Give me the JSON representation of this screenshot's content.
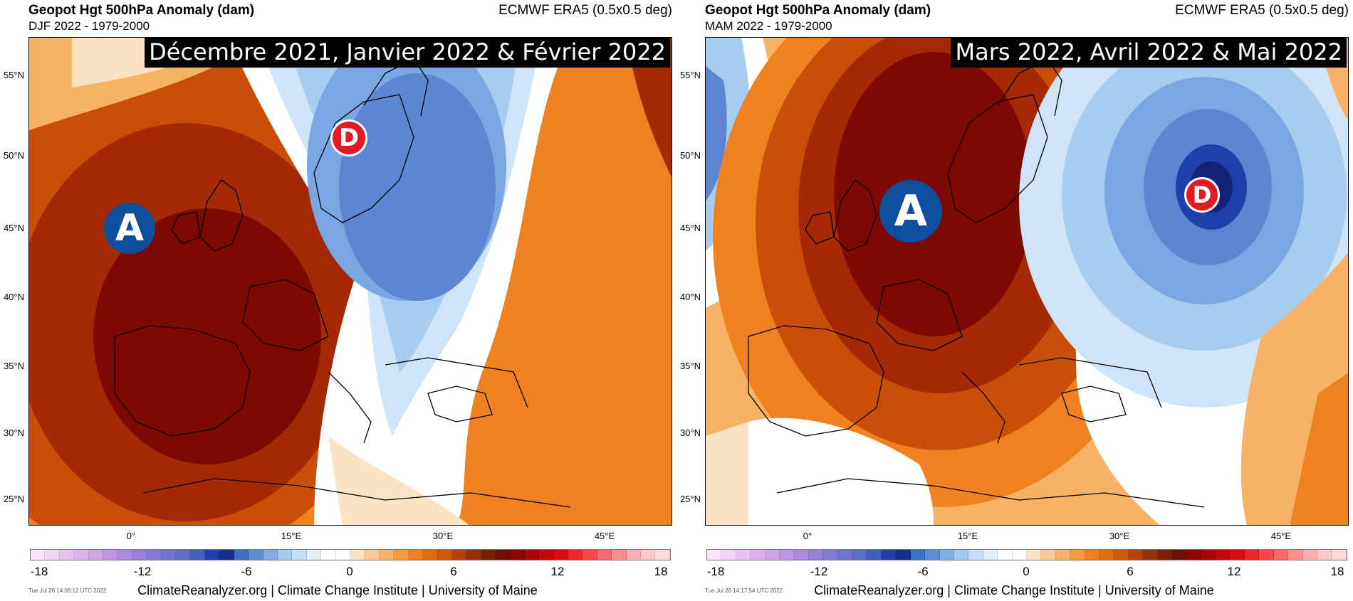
{
  "panels": [
    {
      "title": "Geopot Hgt 500hPa Anomaly (dam)",
      "subtitle": "DJF 2022 - 1979-2000",
      "source": "ECMWF ERA5 (0.5x0.5 deg)",
      "banner": "Décembre 2021, Janvier 2022 & Février 2022",
      "high_marker": "A",
      "low_marker": "D",
      "timestamp": "Tue Jul 26 14:06:12 UTC 2022",
      "credit": "ClimateReanalyzer.org | Climate Change Institute | University of Maine"
    },
    {
      "title": "Geopot Hgt 500hPa Anomaly (dam)",
      "subtitle": "MAM 2022 - 1979-2000",
      "source": "ECMWF ERA5 (0.5x0.5 deg)",
      "banner": "Mars 2022, Avril 2022 & Mai 2022",
      "high_marker": "A",
      "low_marker": "D",
      "timestamp": "Tue Jul 26 14:17:54 UTC 2022",
      "credit": "ClimateReanalyzer.org | Climate Change Institute | University of Maine"
    }
  ],
  "axes": {
    "lat_labels": [
      "55°N",
      "50°N",
      "45°N",
      "40°N",
      "35°N",
      "30°N",
      "25°N"
    ],
    "lon_labels": [
      "0°",
      "15°E",
      "30°E",
      "45°E"
    ]
  },
  "colorbar": {
    "tick_labels": [
      "-18",
      "-12",
      "-6",
      "0",
      "6",
      "12",
      "18"
    ],
    "colors": [
      "#fbe4fb",
      "#f3d3f6",
      "#e9c2f2",
      "#ddb1ee",
      "#cfa3ea",
      "#bf96e6",
      "#ad8ae1",
      "#9a80dc",
      "#8679d6",
      "#7174d0",
      "#5c6fc9",
      "#3f5fbf",
      "#1f40a8",
      "#13308e",
      "#3b70c8",
      "#5a8fd8",
      "#7faee6",
      "#a3c9f0",
      "#c4dff7",
      "#e2effb",
      "#ffffff",
      "#ffffff",
      "#fde2c4",
      "#fbc995",
      "#f9b066",
      "#f59a3d",
      "#ee8220",
      "#e06d10",
      "#cc5808",
      "#b24205",
      "#963004",
      "#7d1f03",
      "#6b1003",
      "#8a0505",
      "#a80606",
      "#c80808",
      "#e30b0b",
      "#f42525",
      "#f94747",
      "#fb6b6b",
      "#fd8e8e",
      "#feaeae",
      "#ffc9c9",
      "#ffdcdc"
    ]
  },
  "palette": {
    "deep_red": "#7d0a02",
    "red": "#a42a05",
    "dark_orange": "#c94f08",
    "orange": "#ee8220",
    "light_orange": "#f8b266",
    "peach": "#fde2c4",
    "white": "#ffffff",
    "pale_blue": "#cfe4f8",
    "light_blue": "#a6ccf0",
    "mid_blue": "#7aa7e2",
    "blue": "#5c86d4",
    "dark_blue": "#1f40a8",
    "navy": "#13237a",
    "high_marker_color": "#0d4f9c",
    "low_marker_color": "#e01b24"
  }
}
